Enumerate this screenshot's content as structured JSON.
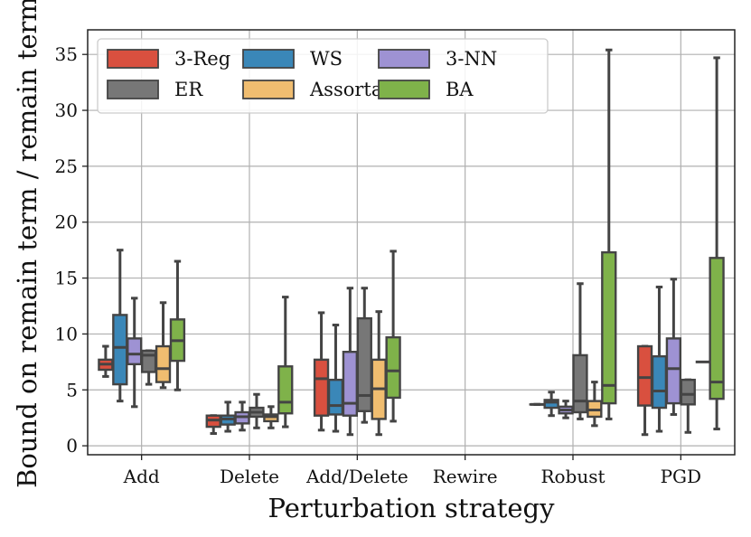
{
  "chart_data": {
    "type": "boxplot",
    "xlabel": "Perturbation strategy",
    "ylabel": "Bound on remain term / remain term",
    "ylim": [
      -0.8,
      37.2
    ],
    "yticks": [
      0,
      5,
      10,
      15,
      20,
      25,
      30,
      35
    ],
    "grid": true,
    "legend": {
      "placement": "top-left",
      "columns": 3
    },
    "categories": [
      "Add",
      "Delete",
      "Add/Delete",
      "Rewire",
      "Robust",
      "PGD"
    ],
    "series": [
      {
        "name": "3-Reg",
        "color": "#d9503f",
        "boxes": [
          {
            "min": 6.2,
            "q1": 6.8,
            "median": 7.3,
            "q3": 7.7,
            "max": 8.9
          },
          {
            "min": 1.1,
            "q1": 1.7,
            "median": 2.3,
            "q3": 2.7,
            "max": 2.7
          },
          {
            "min": 1.4,
            "q1": 2.7,
            "median": 6.0,
            "q3": 7.7,
            "max": 11.9
          },
          null,
          {
            "min": 3.7,
            "q1": 3.7,
            "median": 3.7,
            "q3": 3.7,
            "max": 3.7
          },
          {
            "min": 1.0,
            "q1": 3.6,
            "median": 6.1,
            "q3": 8.9,
            "max": 8.9
          }
        ]
      },
      {
        "name": "WS",
        "color": "#3a87b8",
        "boxes": [
          {
            "min": 4.0,
            "q1": 5.5,
            "median": 8.8,
            "q3": 11.7,
            "max": 17.5
          },
          {
            "min": 1.3,
            "q1": 1.9,
            "median": 2.4,
            "q3": 2.7,
            "max": 3.9
          },
          {
            "min": 1.3,
            "q1": 2.8,
            "median": 3.6,
            "q3": 5.9,
            "max": 10.8
          },
          null,
          {
            "min": 2.7,
            "q1": 3.4,
            "median": 3.9,
            "q3": 4.1,
            "max": 4.8
          },
          {
            "min": 1.3,
            "q1": 3.4,
            "median": 4.9,
            "q3": 8.0,
            "max": 14.2
          }
        ]
      },
      {
        "name": "3-NN",
        "color": "#9e92d3",
        "boxes": [
          {
            "min": 3.5,
            "q1": 7.3,
            "median": 8.2,
            "q3": 9.6,
            "max": 13.2
          },
          {
            "min": 1.4,
            "q1": 2.0,
            "median": 2.6,
            "q3": 3.0,
            "max": 3.9
          },
          {
            "min": 1.0,
            "q1": 2.7,
            "median": 3.8,
            "q3": 8.4,
            "max": 14.1
          },
          null,
          {
            "min": 2.5,
            "q1": 2.9,
            "median": 3.2,
            "q3": 3.5,
            "max": 4.0
          },
          {
            "min": 2.8,
            "q1": 3.8,
            "median": 6.9,
            "q3": 9.6,
            "max": 14.9
          }
        ]
      },
      {
        "name": "ER",
        "color": "#777777",
        "boxes": [
          {
            "min": 5.5,
            "q1": 6.6,
            "median": 8.1,
            "q3": 8.5,
            "max": 8.5
          },
          {
            "min": 1.6,
            "q1": 2.6,
            "median": 3.0,
            "q3": 3.4,
            "max": 4.6
          },
          {
            "min": 2.1,
            "q1": 3.1,
            "median": 4.5,
            "q3": 11.4,
            "max": 14.1
          },
          null,
          {
            "min": 2.4,
            "q1": 3.0,
            "median": 4.0,
            "q3": 8.1,
            "max": 14.5
          },
          {
            "min": 1.2,
            "q1": 3.7,
            "median": 4.6,
            "q3": 5.9,
            "max": 5.9
          }
        ]
      },
      {
        "name": "Assortative",
        "color": "#f0bd70",
        "boxes": [
          {
            "min": 5.2,
            "q1": 5.7,
            "median": 6.9,
            "q3": 8.9,
            "max": 12.8
          },
          {
            "min": 1.6,
            "q1": 2.2,
            "median": 2.6,
            "q3": 2.8,
            "max": 3.5
          },
          {
            "min": 1.0,
            "q1": 2.4,
            "median": 5.1,
            "q3": 7.7,
            "max": 12.0
          },
          null,
          {
            "min": 1.8,
            "q1": 2.6,
            "median": 3.2,
            "q3": 4.0,
            "max": 5.7
          },
          null
        ]
      },
      {
        "name": "BA",
        "color": "#7fb24a",
        "boxes": [
          {
            "min": 5.0,
            "q1": 7.6,
            "median": 9.4,
            "q3": 11.3,
            "max": 16.5
          },
          {
            "min": 1.7,
            "q1": 2.9,
            "median": 3.9,
            "q3": 7.1,
            "max": 13.3
          },
          {
            "min": 2.2,
            "q1": 4.3,
            "median": 6.7,
            "q3": 9.7,
            "max": 17.4
          },
          null,
          {
            "min": 2.4,
            "q1": 3.8,
            "median": 5.4,
            "q3": 17.3,
            "max": 35.4
          },
          {
            "min": 1.5,
            "q1": 4.2,
            "median": 5.7,
            "q3": 16.8,
            "max": 34.7
          }
        ]
      }
    ],
    "extra_marks": [
      {
        "category": "PGD",
        "after_series": "ER",
        "type": "median-line",
        "value": 7.5
      }
    ]
  }
}
